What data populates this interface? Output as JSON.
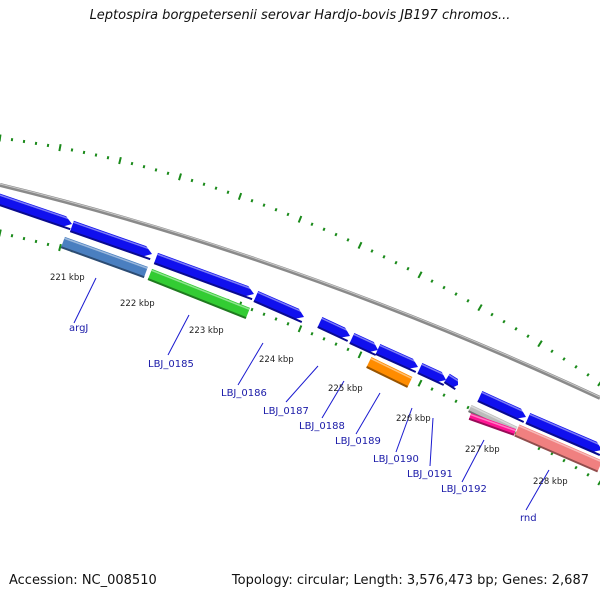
{
  "header": {
    "title": "Leptospira borgpetersenii serovar Hardjo-bovis JB197 chromos..."
  },
  "footer": {
    "accession": "Accession: NC_008510",
    "summary": "Topology: circular; Length: 3,576,473 bp; Genes: 2,687"
  },
  "colors": {
    "backbone": "#888888",
    "gene_default": "#1010ee",
    "tick": "#1a8a1a",
    "label": "#1a1aa8",
    "argJ": "#4a7fc0",
    "LBJ_0185": "#33cc33",
    "LBJ_0189": "#ff8c00",
    "LBJ_0192": "#ff1493",
    "rnd": "#f08080"
  },
  "kbp_labels": [
    "221 kbp",
    "222 kbp",
    "223 kbp",
    "224 kbp",
    "225 kbp",
    "226 kbp",
    "227 kbp",
    "228 kbp"
  ],
  "gene_labels": [
    "argJ",
    "LBJ_0185",
    "LBJ_0186",
    "LBJ_0187",
    "LBJ_0188",
    "LBJ_0189",
    "LBJ_0190",
    "LBJ_0191",
    "LBJ_0192",
    "rnd"
  ]
}
